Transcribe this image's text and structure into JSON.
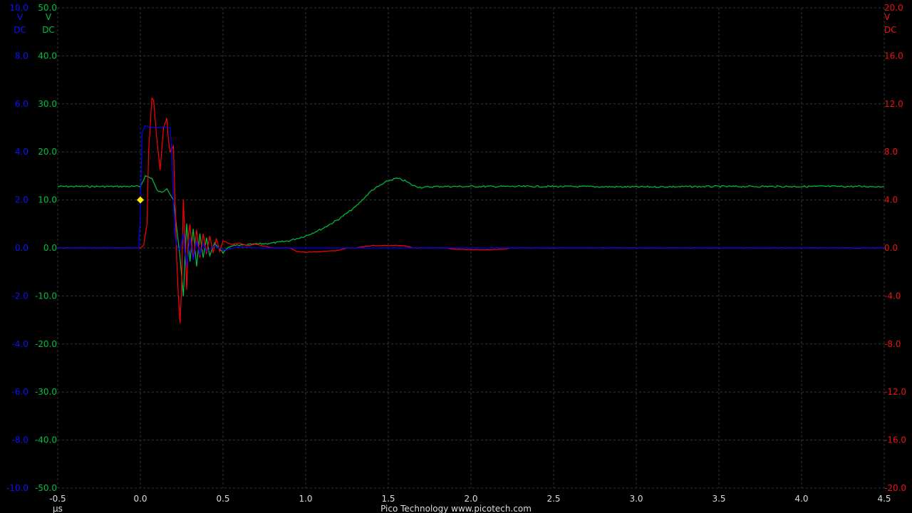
{
  "chart_data": {
    "type": "line",
    "title": "",
    "footer": "Pico Technology   www.picotech.com",
    "x_axis": {
      "unit": "µs",
      "range": [
        -0.5,
        4.5
      ],
      "ticks": [
        "-0.5",
        "0.0",
        "0.5",
        "1.0",
        "1.5",
        "2.0",
        "2.5",
        "3.0",
        "3.5",
        "4.0",
        "4.5"
      ]
    },
    "y_axes": [
      {
        "id": "A",
        "color": "#0000ff",
        "side": "left",
        "range": [
          -10,
          10
        ],
        "unit": "V",
        "coupling": "DC",
        "header": "10.0",
        "ticks": [
          "8.0",
          "6.0",
          "4.0",
          "2.0",
          "0.0",
          "-2.0",
          "-4.0",
          "-6.0",
          "-8.0",
          "-10.0"
        ]
      },
      {
        "id": "B",
        "color": "#00c040",
        "side": "left",
        "range": [
          -50,
          50
        ],
        "unit": "V",
        "coupling": "DC",
        "header": "50.0",
        "ticks": [
          "40.0",
          "30.0",
          "20.0",
          "10.0",
          "0.0",
          "-10.0",
          "-20.0",
          "-30.0",
          "-40.0",
          "-50.0"
        ]
      },
      {
        "id": "C",
        "color": "#ff0000",
        "side": "right",
        "range": [
          -20,
          20
        ],
        "unit": "V",
        "coupling": "DC",
        "header": "20.0",
        "ticks": [
          "16.0",
          "12.0",
          "8.0",
          "4.0",
          "0.0",
          "-4.0",
          "-8.0",
          "-12.0",
          "-16.0",
          "-20.0"
        ]
      }
    ],
    "grid": true,
    "trigger_marker": {
      "x": 0.0,
      "y_axis": "A",
      "y": 2.0,
      "color": "#ffee00"
    },
    "series": [
      {
        "axis": "A",
        "color": "#0000ff",
        "x": [
          -0.5,
          -0.01,
          0.0,
          0.01,
          0.03,
          0.05,
          0.1,
          0.15,
          0.18,
          0.19,
          0.2,
          0.21,
          0.22,
          0.24,
          0.26,
          0.28,
          0.3,
          0.32,
          0.34,
          0.36,
          0.38,
          0.4,
          0.45,
          0.5,
          0.6,
          0.7,
          0.8,
          0.9,
          1.0,
          1.2,
          1.5,
          2.0,
          2.5,
          4.5
        ],
        "y": [
          0.0,
          0.0,
          1.5,
          4.8,
          5.1,
          5.05,
          5.0,
          5.05,
          5.0,
          4.0,
          2.0,
          0.5,
          0.1,
          -0.1,
          0.6,
          -0.8,
          0.4,
          -0.5,
          0.3,
          -0.3,
          0.2,
          -0.15,
          0.1,
          -0.1,
          0.05,
          0.0,
          0.0,
          0.0,
          0.0,
          0.0,
          0.0,
          0.0,
          0.0,
          0.0
        ]
      },
      {
        "axis": "B",
        "color": "#00c040",
        "x": [
          -0.5,
          -0.01,
          0.0,
          0.03,
          0.07,
          0.1,
          0.13,
          0.16,
          0.2,
          0.22,
          0.24,
          0.26,
          0.28,
          0.3,
          0.32,
          0.34,
          0.36,
          0.38,
          0.4,
          0.42,
          0.45,
          0.5,
          0.55,
          0.6,
          0.7,
          0.8,
          0.9,
          1.0,
          1.1,
          1.2,
          1.3,
          1.4,
          1.5,
          1.55,
          1.6,
          1.65,
          1.7,
          1.8,
          2.0,
          2.5,
          3.0,
          3.5,
          4.0,
          4.5
        ],
        "y": [
          12.8,
          12.8,
          12.8,
          15.0,
          14.5,
          12.0,
          11.5,
          12.5,
          10.0,
          4.0,
          -2.0,
          -10.0,
          5.0,
          -3.0,
          4.0,
          -4.0,
          3.0,
          -2.0,
          2.0,
          -1.5,
          1.0,
          -1.0,
          0.5,
          0.5,
          0.8,
          1.0,
          1.5,
          2.5,
          4.0,
          6.0,
          8.5,
          12.0,
          14.0,
          14.5,
          14.0,
          13.0,
          12.6,
          12.8,
          12.8,
          12.8,
          12.7,
          12.8,
          12.8,
          12.8
        ]
      },
      {
        "axis": "C",
        "color": "#ff0000",
        "x": [
          -0.5,
          0.0,
          0.02,
          0.04,
          0.05,
          0.07,
          0.08,
          0.1,
          0.12,
          0.14,
          0.16,
          0.17,
          0.18,
          0.2,
          0.21,
          0.22,
          0.23,
          0.24,
          0.25,
          0.26,
          0.27,
          0.28,
          0.29,
          0.3,
          0.32,
          0.34,
          0.36,
          0.38,
          0.4,
          0.42,
          0.44,
          0.46,
          0.48,
          0.5,
          0.55,
          0.6,
          0.65,
          0.7,
          0.8,
          0.85,
          0.9,
          0.95,
          1.0,
          1.1,
          1.2,
          1.25,
          1.3,
          1.35,
          1.4,
          1.5,
          1.6,
          1.65,
          1.8,
          1.85,
          1.9,
          1.95,
          2.0,
          2.1,
          2.2,
          2.25,
          2.45,
          2.5,
          2.55,
          2.6,
          2.65,
          2.7,
          4.5
        ],
        "y": [
          0.0,
          0.0,
          0.2,
          2.0,
          8.0,
          12.5,
          12.3,
          9.0,
          6.5,
          10.0,
          10.8,
          9.0,
          8.0,
          8.5,
          4.0,
          -1.0,
          -4.0,
          -6.3,
          -3.0,
          4.0,
          1.0,
          -3.5,
          1.0,
          2.0,
          -1.0,
          1.5,
          -0.8,
          1.2,
          -0.5,
          1.0,
          -0.4,
          0.8,
          -0.3,
          0.6,
          0.3,
          0.4,
          0.2,
          0.3,
          0.0,
          0.0,
          0.0,
          -0.3,
          -0.35,
          -0.3,
          -0.2,
          0.0,
          0.0,
          0.1,
          0.2,
          0.2,
          0.2,
          0.0,
          0.0,
          0.0,
          -0.1,
          -0.1,
          -0.15,
          -0.15,
          -0.1,
          0.0,
          0.0,
          0.0,
          0.0,
          0.0,
          0.0,
          0.0,
          0.0
        ]
      }
    ]
  }
}
